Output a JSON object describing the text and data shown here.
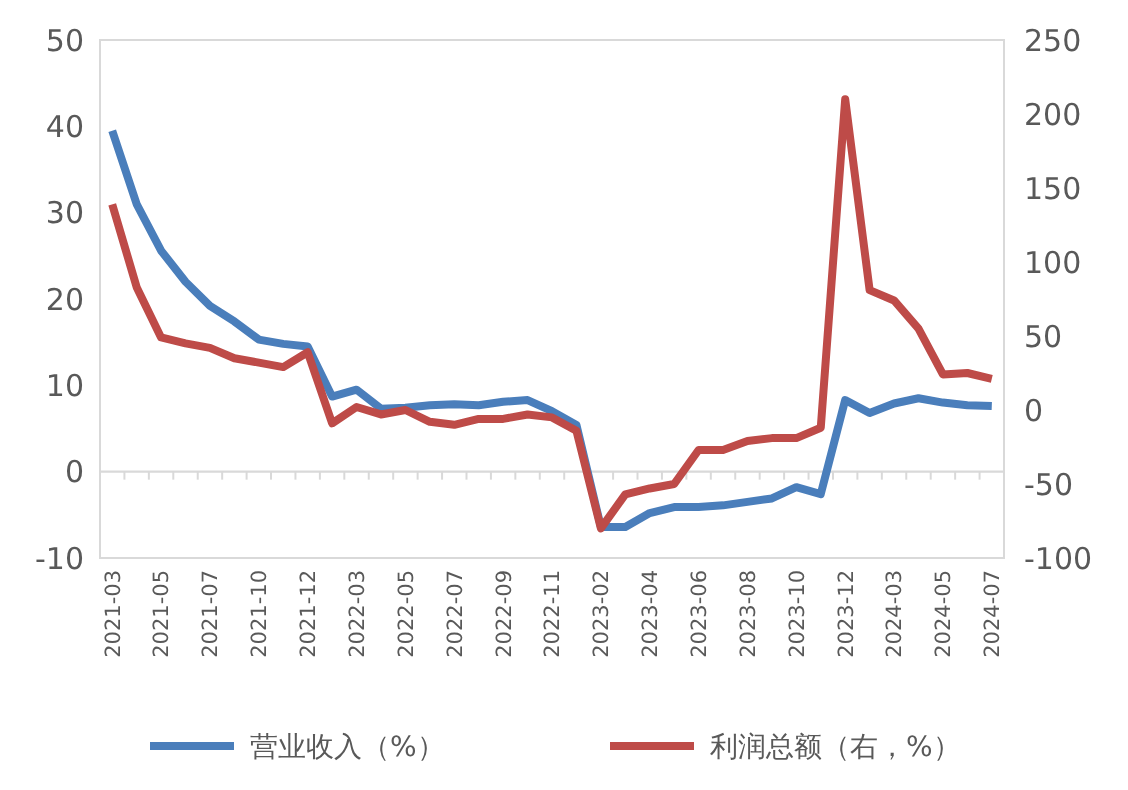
{
  "chart_data": {
    "type": "line",
    "categories": [
      "2021-03",
      null,
      "2021-05",
      null,
      "2021-07",
      null,
      "2021-10",
      null,
      "2021-12",
      null,
      "2022-03",
      null,
      "2022-05",
      null,
      "2022-07",
      null,
      "2022-09",
      null,
      "2022-11",
      null,
      "2023-02",
      null,
      "2023-04",
      null,
      "2023-06",
      null,
      "2023-08",
      null,
      "2023-10",
      null,
      "2023-12",
      null,
      "2024-03",
      null,
      "2024-05",
      null,
      "2024-07"
    ],
    "series": [
      {
        "name": "营业收入（%）",
        "color": "#4a7ebb",
        "values": [
          39.5,
          31,
          25.6,
          22,
          19.2,
          17.4,
          15.3,
          14.8,
          14.5,
          8.7,
          9.5,
          7.3,
          7.4,
          7.7,
          7.8,
          7.7,
          8.1,
          8.3,
          7.0,
          5.4,
          -6.4,
          -6.4,
          -4.8,
          -4.1,
          -4.1,
          -3.9,
          -3.5,
          -3.1,
          -1.8,
          -2.6,
          8.3,
          6.8,
          7.9,
          8.5,
          8.0,
          7.7,
          7.6
        ]
      },
      {
        "name": "利润总额（右，%）",
        "color": "#be4b48",
        "axis": "y2",
        "values": [
          139,
          83,
          49,
          45,
          42,
          35,
          32,
          29,
          39,
          -9,
          2,
          -3,
          0,
          -8,
          -10,
          -6,
          -6,
          -3,
          -5,
          -14,
          -80,
          -57,
          -53,
          -50,
          -27,
          -27,
          -21,
          -19,
          -19,
          -12,
          210,
          81,
          74,
          55,
          24,
          25,
          21
        ]
      }
    ],
    "ylim": [
      -10,
      50
    ],
    "yticks": [
      -10,
      0,
      10,
      20,
      30,
      40,
      50
    ],
    "y2lim": [
      -100,
      250
    ],
    "y2ticks": [
      -100,
      -50,
      0,
      50,
      100,
      150,
      200,
      250
    ],
    "legend": "bottom"
  }
}
